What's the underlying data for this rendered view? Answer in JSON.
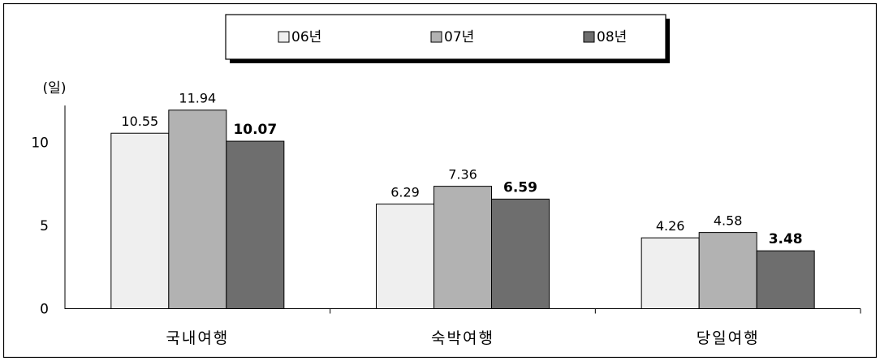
{
  "chart_data": {
    "type": "bar",
    "ylabel": "(일)",
    "ylim": [
      0,
      12.5
    ],
    "yticks": [
      "0",
      "5",
      "10"
    ],
    "categories": [
      "국내여행",
      "숙박여행",
      "당일여행"
    ],
    "series": [
      {
        "name": "06년",
        "values": [
          10.55,
          6.29,
          4.26
        ],
        "labels": [
          "10.55",
          "6.29",
          "4.26"
        ],
        "color": "#efefef",
        "bold": false
      },
      {
        "name": "07년",
        "values": [
          11.94,
          7.36,
          4.58
        ],
        "labels": [
          "11.94",
          "7.36",
          "4.58"
        ],
        "color": "#b2b2b2",
        "bold": false
      },
      {
        "name": "08년",
        "values": [
          10.07,
          6.59,
          3.48
        ],
        "labels": [
          "10.07",
          "6.59",
          "3.48"
        ],
        "color": "#6e6e6e",
        "bold": true
      }
    ],
    "grid": false,
    "legend": "top-center"
  }
}
